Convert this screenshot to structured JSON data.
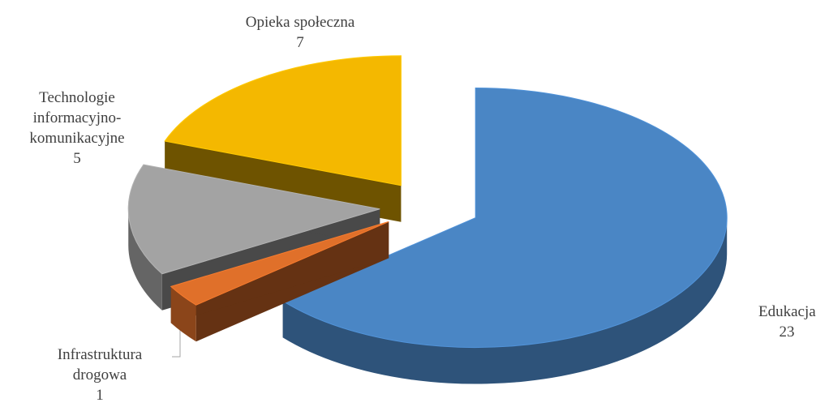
{
  "chart_data": {
    "type": "pie",
    "categories": [
      "Edukacja",
      "Infrastruktura drogowa",
      "Technologie informacyjno-komunikacyjne",
      "Opieka społeczna"
    ],
    "values": [
      23,
      1,
      5,
      7
    ],
    "colors": [
      "#4a86c5",
      "#e0702a",
      "#a3a3a3",
      "#f4b800"
    ]
  }
}
